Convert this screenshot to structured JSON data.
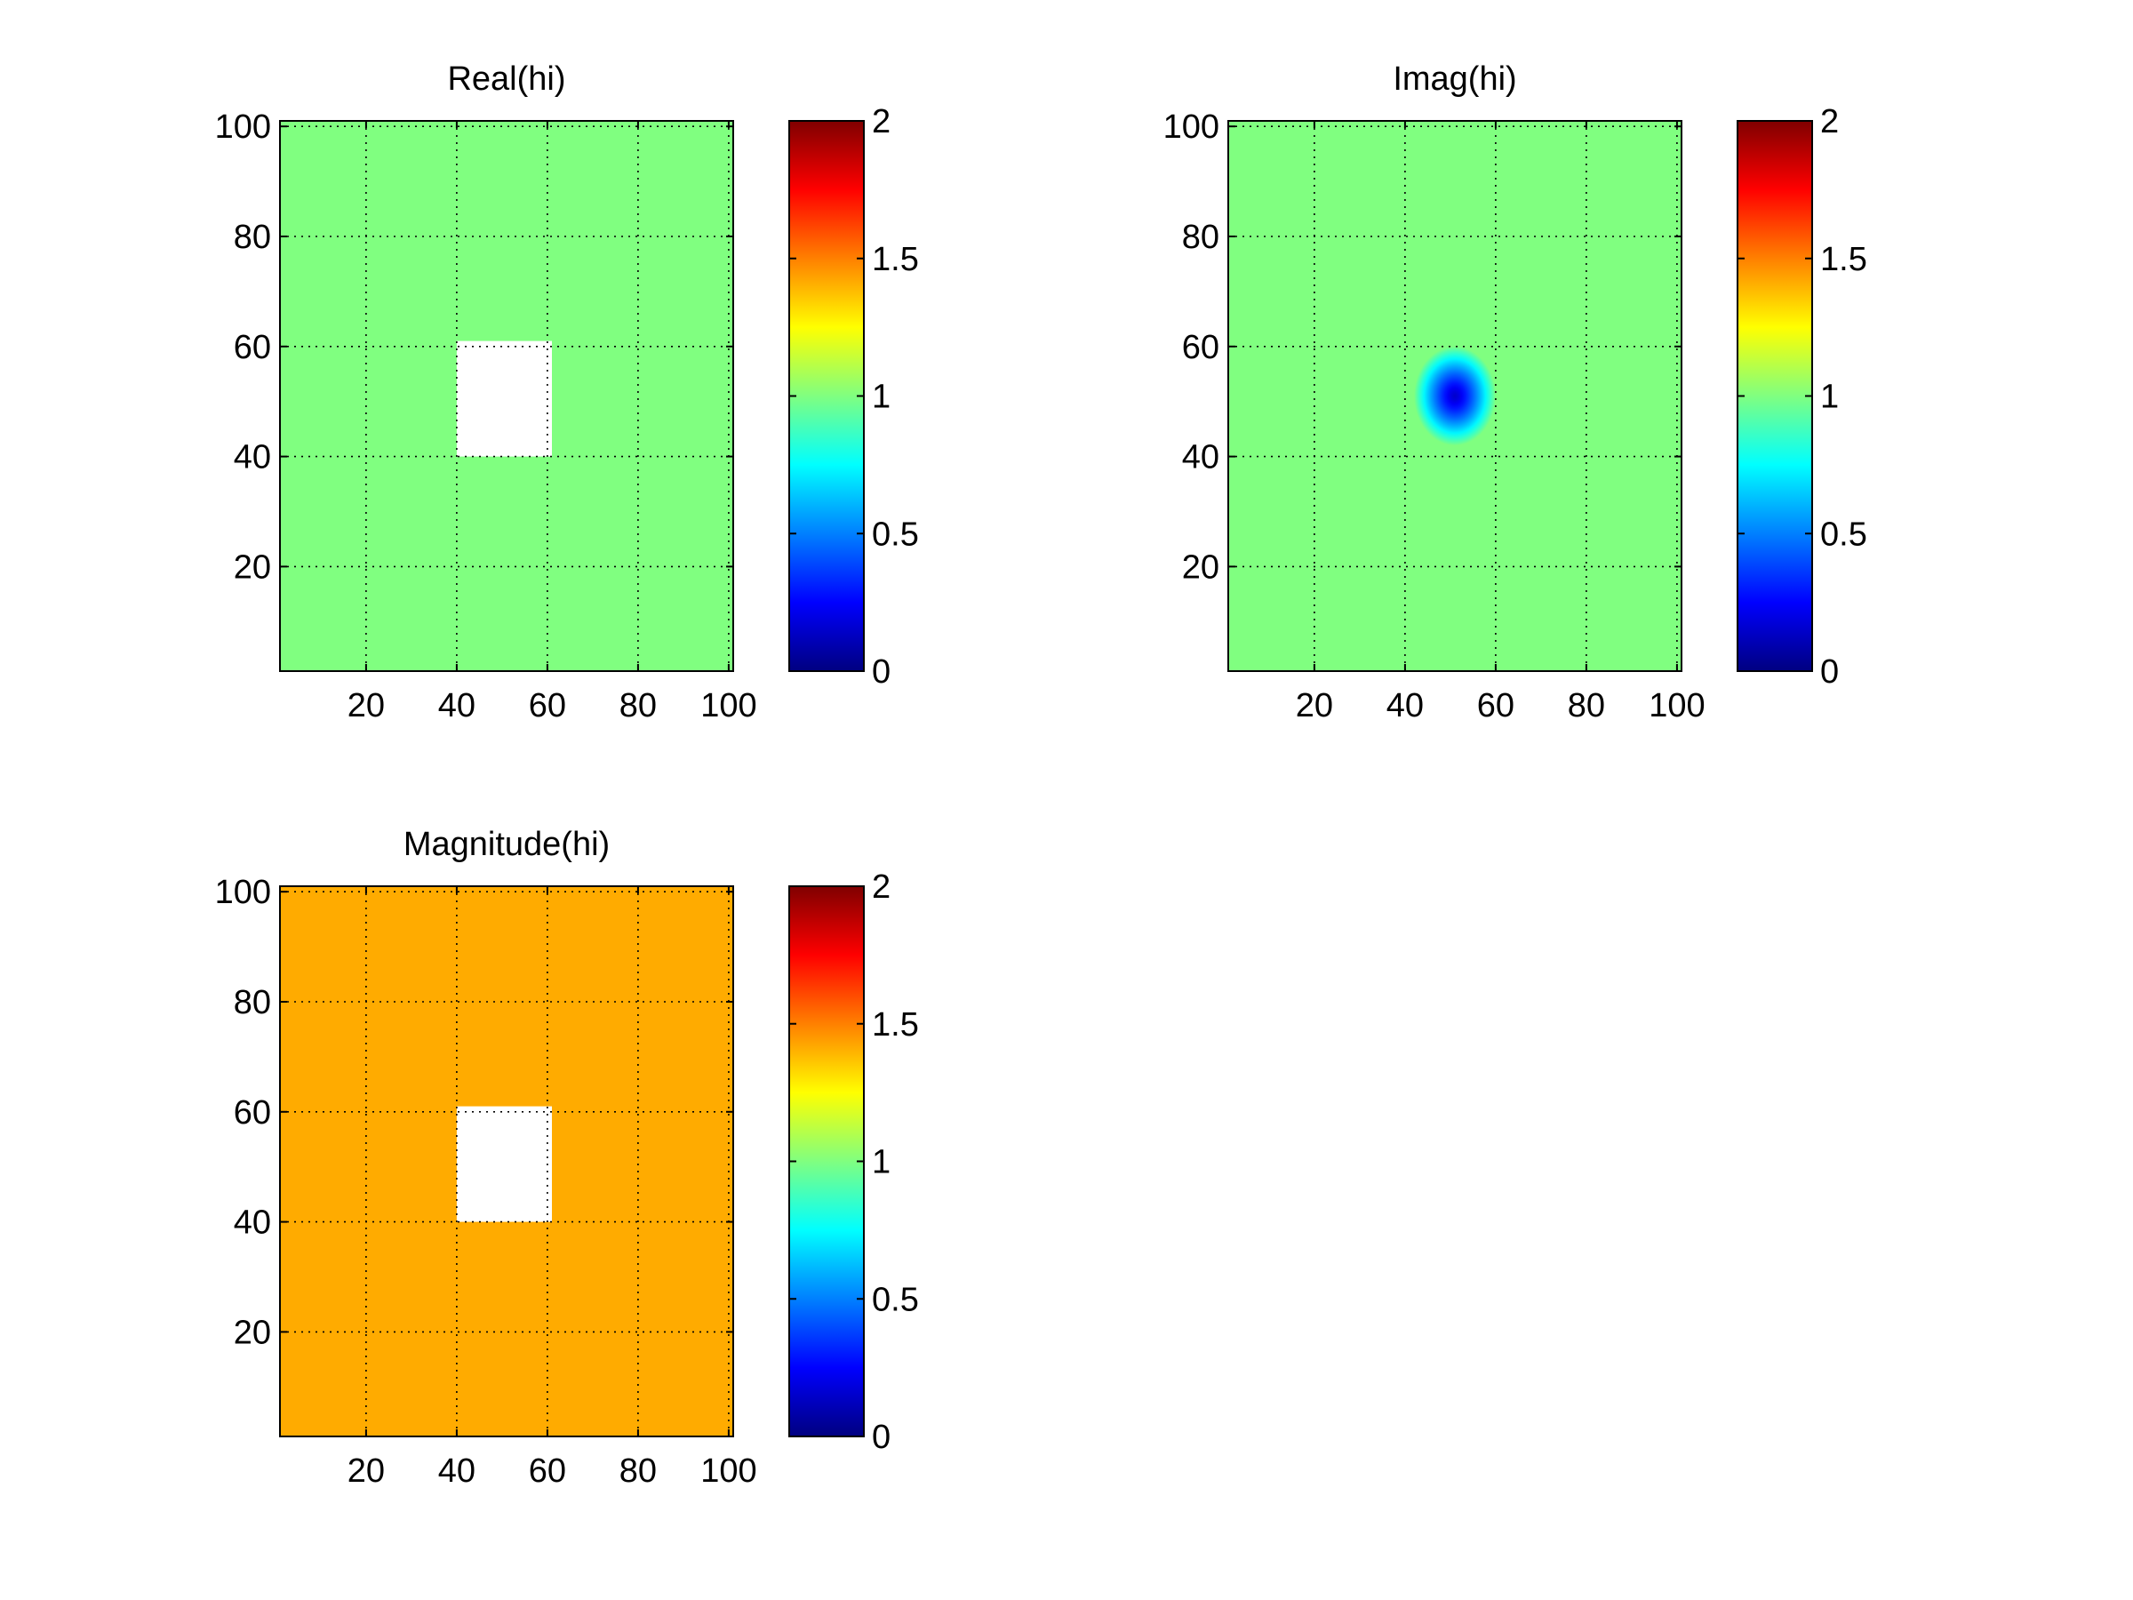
{
  "chart_data": [
    {
      "type": "heatmap",
      "title": "Real(hi)",
      "xlabel": "",
      "ylabel": "",
      "xlim": [
        1,
        101
      ],
      "ylim": [
        1,
        101
      ],
      "xticks": [
        20,
        40,
        60,
        80,
        100
      ],
      "yticks": [
        20,
        40,
        60,
        80,
        100
      ],
      "grid": true,
      "background_value": 1,
      "features": [
        {
          "kind": "blank_region",
          "value": null,
          "x_range": [
            40,
            61
          ],
          "y_range": [
            40,
            61
          ]
        }
      ],
      "colorbar": {
        "colormap": "jet",
        "clim": [
          0,
          2
        ],
        "ticks": [
          "0",
          "0.5",
          "1",
          "1.5",
          "2"
        ]
      }
    },
    {
      "type": "heatmap",
      "title": "Imag(hi)",
      "xlabel": "",
      "ylabel": "",
      "xlim": [
        1,
        101
      ],
      "ylim": [
        1,
        101
      ],
      "xticks": [
        20,
        40,
        60,
        80,
        100
      ],
      "yticks": [
        20,
        40,
        60,
        80,
        100
      ],
      "grid": true,
      "background_value": 1,
      "features": [
        {
          "kind": "dip",
          "center": [
            51,
            51
          ],
          "min_value": 0.15,
          "radius": 9
        }
      ],
      "colorbar": {
        "colormap": "jet",
        "clim": [
          0,
          2
        ],
        "ticks": [
          "0",
          "0.5",
          "1",
          "1.5",
          "2"
        ]
      }
    },
    {
      "type": "heatmap",
      "title": "Magnitude(hi)",
      "xlabel": "",
      "ylabel": "",
      "xlim": [
        1,
        101
      ],
      "ylim": [
        1,
        101
      ],
      "xticks": [
        20,
        40,
        60,
        80,
        100
      ],
      "yticks": [
        20,
        40,
        60,
        80,
        100
      ],
      "grid": true,
      "background_value": 1.414,
      "features": [
        {
          "kind": "blank_region",
          "value": null,
          "x_range": [
            40,
            61
          ],
          "y_range": [
            40,
            61
          ]
        }
      ],
      "colorbar": {
        "colormap": "jet",
        "clim": [
          0,
          2
        ],
        "ticks": [
          "0",
          "0.5",
          "1",
          "1.5",
          "2"
        ]
      }
    }
  ]
}
